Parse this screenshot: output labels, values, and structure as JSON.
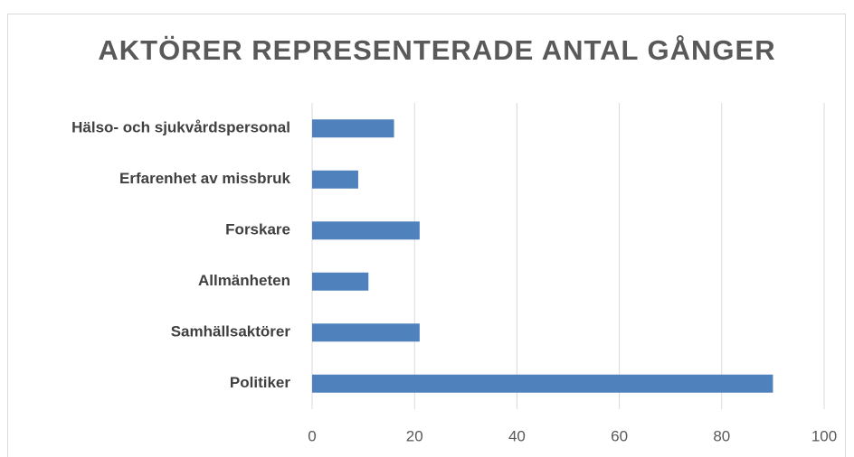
{
  "chart_data": {
    "type": "bar",
    "title": "AKTÖRER REPRESENTERADE ANTAL GÅNGER",
    "categories": [
      "Hälso- och sjukvårdspersonal",
      "Erfarenhet av missbruk",
      "Forskare",
      "Allmänheten",
      "Samhällsaktörer",
      "Politiker"
    ],
    "values": [
      16,
      9,
      21,
      11,
      21,
      90
    ],
    "color": "#4f81bd",
    "xlim": [
      0,
      100
    ],
    "xticks": [
      0,
      20,
      40,
      60,
      80,
      100
    ],
    "grid": true
  }
}
